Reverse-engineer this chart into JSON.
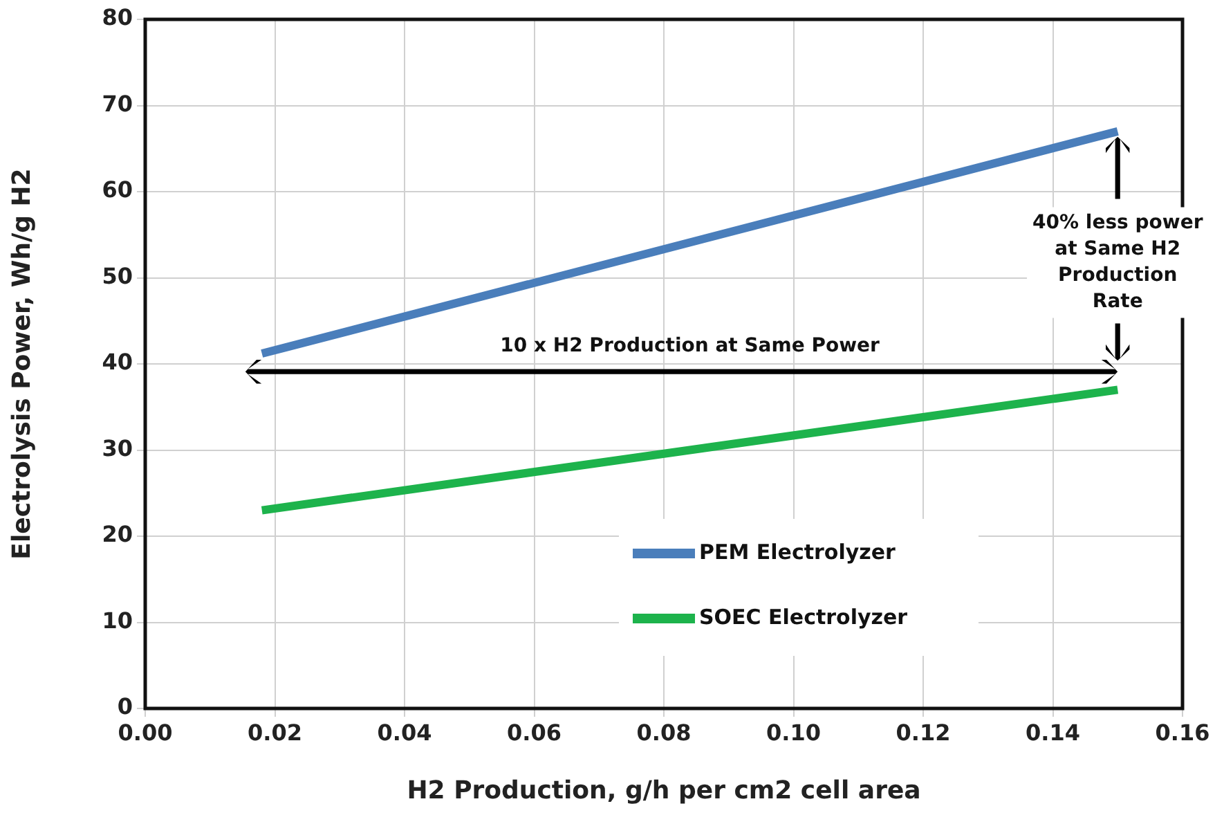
{
  "chart_data": {
    "type": "line",
    "xlabel": "H2 Production, g/h per cm2 cell area",
    "ylabel": "Electrolysis Power, Wh/g H2",
    "xlim": [
      0,
      0.16
    ],
    "xticks": [
      {
        "value": 0,
        "label": "0.00"
      },
      {
        "value": 0.02,
        "label": "0.02"
      },
      {
        "value": 0.04,
        "label": "0.04"
      },
      {
        "value": 0.06,
        "label": "0.06"
      },
      {
        "value": 0.08,
        "label": "0.08"
      },
      {
        "value": 0.1,
        "label": "0.10"
      },
      {
        "value": 0.12,
        "label": "0.12"
      },
      {
        "value": 0.14,
        "label": "0.14"
      },
      {
        "value": 0.16,
        "label": "0.16"
      }
    ],
    "ylim": [
      0,
      80
    ],
    "yticks": [
      0,
      10,
      20,
      30,
      40,
      50,
      60,
      70,
      80
    ],
    "x": [
      0.018,
      0.15
    ],
    "series": [
      {
        "name": "PEM Electrolyzer",
        "color": "#4a7ebb",
        "values": [
          41.2,
          67
        ]
      },
      {
        "name": "SOEC Electrolyzer",
        "color": "#1db34c",
        "values": [
          23,
          37
        ]
      }
    ],
    "annotations": [
      "10 x H2 Production at Same Power",
      "40% less power at Same H2 Production Rate"
    ],
    "grid": true,
    "legend": "bottom right",
    "line_style": "solid"
  }
}
